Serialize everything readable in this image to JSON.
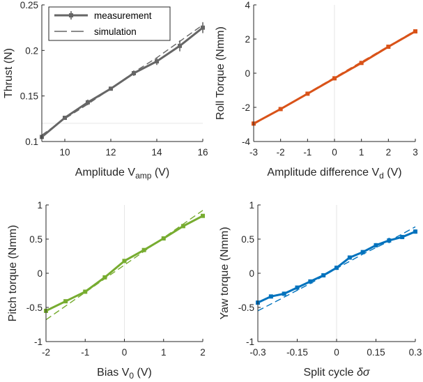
{
  "chart_data": [
    {
      "id": "thrust",
      "type": "line",
      "xlim": [
        9,
        16
      ],
      "ylim": [
        0.1,
        0.25
      ],
      "xticks": [
        10,
        12,
        14,
        16
      ],
      "yticks": [
        0.1,
        0.15,
        0.2,
        0.25
      ],
      "ytick_labels": [
        "0.1",
        "0.15",
        "0.2",
        "0.25"
      ],
      "xlabel": {
        "main": "Amplitude V",
        "sub": "amp",
        "tail": " (V)"
      },
      "ylabel": "Thrust (N)",
      "color": "#666666",
      "zero_lines": {
        "x": null,
        "y": 0.12
      },
      "legend": {
        "position": "top-left",
        "entries": [
          "measurement",
          "simulation"
        ]
      },
      "series": [
        {
          "name": "measurement",
          "style": "solid-marker",
          "x": [
            9,
            10,
            11,
            12,
            13,
            14,
            15,
            16
          ],
          "y": [
            0.105,
            0.126,
            0.143,
            0.158,
            0.175,
            0.188,
            0.205,
            0.225
          ],
          "err": [
            0.002,
            0.002,
            0.003,
            0.002,
            0.003,
            0.004,
            0.006,
            0.006
          ]
        },
        {
          "name": "simulation",
          "style": "dashed",
          "x": [
            9,
            10,
            11,
            12,
            13,
            14,
            15,
            16
          ],
          "y": [
            0.107,
            0.125,
            0.141,
            0.158,
            0.176,
            0.192,
            0.21,
            0.228
          ]
        }
      ]
    },
    {
      "id": "roll",
      "type": "line",
      "xlim": [
        -3,
        3
      ],
      "ylim": [
        -4,
        4
      ],
      "xticks": [
        -3,
        -2,
        -1,
        0,
        1,
        2,
        3
      ],
      "yticks": [
        -4,
        -2,
        0,
        2,
        4
      ],
      "ytick_labels": [
        "-4",
        "-2",
        "0",
        "2",
        "4"
      ],
      "xlabel": {
        "main": "Amplitude difference V",
        "sub": "d",
        "tail": " (V)"
      },
      "ylabel": "Roll Torque (Nmm)",
      "color": "#d95319",
      "zero_lines": {
        "x": 0,
        "y": null
      },
      "series": [
        {
          "name": "measurement",
          "style": "solid-marker",
          "x": [
            -3,
            -2,
            -1,
            0,
            1,
            2,
            3
          ],
          "y": [
            -2.95,
            -2.1,
            -1.2,
            -0.3,
            0.6,
            1.55,
            2.45
          ]
        },
        {
          "name": "simulation",
          "style": "dashed",
          "x": [
            -3,
            3
          ],
          "y": [
            -3.0,
            2.5
          ]
        }
      ]
    },
    {
      "id": "pitch",
      "type": "line",
      "xlim": [
        -2,
        2
      ],
      "ylim": [
        -1,
        1
      ],
      "xticks": [
        -2,
        -1,
        0,
        1,
        2
      ],
      "yticks": [
        -1,
        -0.5,
        0,
        0.5,
        1
      ],
      "ytick_labels": [
        "-1",
        "-0.5",
        "0",
        "0.5",
        "1"
      ],
      "xlabel": {
        "main": "Bias V",
        "sub": "0",
        "tail": " (V)"
      },
      "ylabel": "Pitch torque (Nmm)",
      "color": "#77ac30",
      "zero_lines": {
        "x": 0,
        "y": null
      },
      "series": [
        {
          "name": "measurement",
          "style": "solid-marker",
          "x": [
            -2,
            -1.5,
            -1,
            -0.5,
            0,
            0.5,
            1,
            1.5,
            2
          ],
          "y": [
            -0.55,
            -0.41,
            -0.27,
            -0.06,
            0.18,
            0.34,
            0.51,
            0.69,
            0.84
          ]
        },
        {
          "name": "simulation",
          "style": "dashed",
          "x": [
            -2,
            2
          ],
          "y": [
            -0.68,
            0.92
          ]
        }
      ]
    },
    {
      "id": "yaw",
      "type": "line",
      "xlim": [
        -0.3,
        0.3
      ],
      "ylim": [
        -1,
        1
      ],
      "xticks": [
        -0.3,
        -0.15,
        0,
        0.15,
        0.3
      ],
      "xtick_labels": [
        "-0.3",
        "-0.15",
        "0",
        "0.15",
        "0.3"
      ],
      "yticks": [
        -1,
        -0.5,
        0,
        0.5,
        1
      ],
      "ytick_labels": [
        "-1",
        "-0.5",
        "0",
        "0.5",
        "1"
      ],
      "xlabel": {
        "main": "Split cycle ",
        "symbol": "δσ"
      },
      "ylabel": "Yaw torque (Nmm)",
      "color": "#0072bd",
      "zero_lines": {
        "x": 0,
        "y": null
      },
      "series": [
        {
          "name": "measurement",
          "style": "solid-marker",
          "x": [
            -0.3,
            -0.25,
            -0.2,
            -0.15,
            -0.1,
            -0.05,
            0,
            0.05,
            0.1,
            0.15,
            0.2,
            0.25,
            0.3
          ],
          "y": [
            -0.43,
            -0.34,
            -0.3,
            -0.21,
            -0.12,
            -0.03,
            0.08,
            0.23,
            0.31,
            0.41,
            0.48,
            0.53,
            0.61
          ],
          "err": [
            0.02,
            0.02,
            0.03,
            0.02,
            0.02,
            0.02,
            0.03,
            0.02,
            0.02,
            0.03,
            0.04,
            0.03,
            0.03
          ]
        },
        {
          "name": "simulation",
          "style": "dashed",
          "x": [
            -0.3,
            -0.25,
            -0.2,
            -0.1,
            0,
            0.1,
            0.2,
            0.3
          ],
          "y": [
            -0.55,
            -0.45,
            -0.35,
            -0.15,
            0.07,
            0.28,
            0.47,
            0.68
          ]
        }
      ]
    }
  ]
}
